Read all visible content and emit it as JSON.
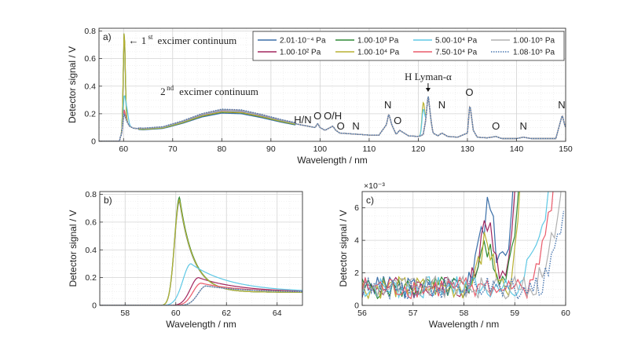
{
  "chart_data": [
    {
      "type": "line",
      "panel_label": "a)",
      "xlabel": "Wavelength / nm",
      "ylabel": "Detector signal / V",
      "xlim": [
        55,
        150
      ],
      "ylim": [
        0,
        0.82
      ],
      "xticks": [
        "60",
        "70",
        "80",
        "90",
        "100",
        "110",
        "120",
        "130",
        "140",
        "150"
      ],
      "yticks": [
        "0",
        "0.2",
        "0.4",
        "0.6",
        "0.8"
      ],
      "grid": true,
      "legend_position": "top-right",
      "legend": [
        {
          "name": "2.01·10⁻⁴ Pa",
          "color": "#3b6fa8",
          "dashed": false
        },
        {
          "name": "1.00·10² Pa",
          "color": "#a2275f",
          "dashed": false
        },
        {
          "name": "1.00·10³ Pa",
          "color": "#2f8a35",
          "dashed": false
        },
        {
          "name": "1.00·10⁴ Pa",
          "color": "#b8b132",
          "dashed": false
        },
        {
          "name": "5.00·10⁴ Pa",
          "color": "#5ec8e5",
          "dashed": false
        },
        {
          "name": "7.50·10⁴ Pa",
          "color": "#ea5a6a",
          "dashed": false
        },
        {
          "name": "1.00·10⁵ Pa",
          "color": "#b0b0b0",
          "dashed": false
        },
        {
          "name": "1.08·10⁵ Pa",
          "color": "#4876b0",
          "dashed": true
        }
      ],
      "annotations": {
        "first_continuum_arrow": "← 1",
        "first_continuum_sup": "st",
        "first_continuum_text": "excimer continuum",
        "second_continuum_main": "2",
        "second_continuum_sup": "nd",
        "second_continuum_text": "excimer continuum",
        "lyman": "H Lyman-α",
        "lines": [
          {
            "label": "H/N",
            "x": 96.5,
            "y": 0.13
          },
          {
            "label": "O",
            "x": 99.5,
            "y": 0.16
          },
          {
            "label": "O/H",
            "x": 102.6,
            "y": 0.16
          },
          {
            "label": "O",
            "x": 104.2,
            "y": 0.085
          },
          {
            "label": "N",
            "x": 107.3,
            "y": 0.085
          },
          {
            "label": "N",
            "x": 113.8,
            "y": 0.24
          },
          {
            "label": "O",
            "x": 115.8,
            "y": 0.125
          },
          {
            "label": "N",
            "x": 124.8,
            "y": 0.24
          },
          {
            "label": "O",
            "x": 130.4,
            "y": 0.33
          },
          {
            "label": "O",
            "x": 135.8,
            "y": 0.085
          },
          {
            "label": "N",
            "x": 141.4,
            "y": 0.085
          },
          {
            "label": "N",
            "x": 149.2,
            "y": 0.24
          }
        ]
      },
      "spectra_points": {
        "x": [
          55,
          58,
          59,
          59.6,
          60.1,
          60.6,
          61.2,
          62,
          64,
          68,
          72,
          76,
          80,
          84,
          88,
          92,
          96,
          99,
          99.5,
          100,
          101,
          102.6,
          103.2,
          104,
          106,
          108,
          110,
          112,
          113.5,
          114,
          114.6,
          115.5,
          116.2,
          118,
          120,
          120.5,
          121,
          121.5,
          122,
          122.6,
          123,
          124,
          124.8,
          126,
          128,
          130,
          130.5,
          131.2,
          132,
          134,
          135.8,
          137,
          140,
          141.4,
          143,
          146,
          148,
          149.3,
          149.8,
          150
        ],
        "base": [
          0,
          0,
          0.005,
          0.05,
          0.2,
          0.15,
          0.11,
          0.095,
          0.09,
          0.1,
          0.14,
          0.19,
          0.22,
          0.215,
          0.185,
          0.15,
          0.12,
          0.1,
          0.13,
          0.1,
          0.08,
          0.11,
          0.08,
          0.06,
          0.055,
          0.05,
          0.045,
          0.045,
          0.12,
          0.2,
          0.12,
          0.05,
          0.08,
          0.04,
          0.035,
          0.04,
          0.05,
          0.15,
          0.34,
          0.15,
          0.06,
          0.04,
          0.06,
          0.035,
          0.03,
          0.06,
          0.27,
          0.08,
          0.03,
          0.025,
          0.035,
          0.02,
          0.02,
          0.03,
          0.02,
          0.02,
          0.02,
          0.19,
          0.12,
          0.1
        ],
        "extra_at_first_peak": [
          0,
          0.6,
          0.6,
          0.58,
          0.58,
          0.1,
          0.02,
          0.03,
          0
        ],
        "extra_at_lyman_peak": [
          0,
          0,
          0,
          0,
          0,
          0,
          0,
          0,
          0.13,
          0.08
        ]
      }
    },
    {
      "type": "line",
      "panel_label": "b)",
      "xlabel": "Wavelength / nm",
      "ylabel": "Detector signal / V",
      "xlim": [
        57,
        65
      ],
      "ylim": [
        0,
        0.82
      ],
      "xticks": [
        "58",
        "60",
        "62",
        "64"
      ],
      "yticks": [
        "0",
        "0.2",
        "0.4",
        "0.6",
        "0.8"
      ],
      "grid": true,
      "series_peaks": [
        0.75,
        0.2,
        0.78,
        0.76,
        0.3,
        0.16,
        0.14,
        0.14
      ]
    },
    {
      "type": "line",
      "panel_label": "c)",
      "xlabel": "Wavelength / nm",
      "ylabel": "Detector signal / V",
      "xlim": [
        56,
        60
      ],
      "ylim": [
        0,
        0.007
      ],
      "scale_label": "×10⁻³",
      "xticks": [
        "56",
        "57",
        "58",
        "59",
        "60"
      ],
      "yticks": [
        "0",
        "2",
        "4",
        "6"
      ],
      "grid": true,
      "onset_x": [
        59.1,
        59.15,
        59.2,
        59.25,
        59.55,
        59.65,
        59.8,
        59.9
      ],
      "bump_amp": [
        0.0047,
        0.0039,
        0.0024,
        0.0029,
        0.0,
        0.0,
        0.0,
        0.0
      ]
    }
  ]
}
